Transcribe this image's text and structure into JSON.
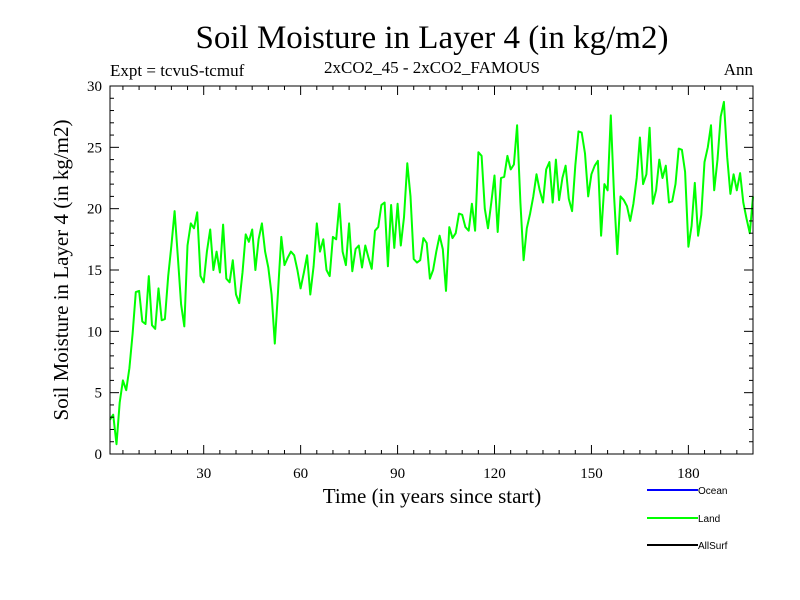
{
  "title": "Soil Moisture in Layer 4 (in kg/m2)",
  "subtitle_left": "Expt = tcvuS-tcmuf",
  "subtitle_center": "2xCO2_45 - 2xCO2_FAMOUS",
  "subtitle_right": "Ann",
  "colors": {
    "Ocean": "#0000ff",
    "Land": "#00ff00",
    "AllSurf": "#000000"
  },
  "chart_data": {
    "type": "line",
    "title": "Soil Moisture in Layer 4 (in kg/m2)",
    "xlabel": "Time (in years since start)",
    "ylabel": "Soil Moisture in Layer 4 (in kg/m2)",
    "xlim": [
      1,
      200
    ],
    "ylim": [
      0,
      30
    ],
    "xticks": [
      30,
      60,
      90,
      120,
      150,
      180
    ],
    "yticks": [
      0,
      5,
      10,
      15,
      20,
      25,
      30
    ],
    "grid": false,
    "legend_position": "bottom-right",
    "legend": [
      "Ocean",
      "Land",
      "AllSurf"
    ],
    "series": [
      {
        "name": "Ocean",
        "color": "#0000ff",
        "values": []
      },
      {
        "name": "Land",
        "color": "#00ff00",
        "x_start": 1,
        "x_step": 1,
        "values": [
          2.8,
          3.2,
          0.8,
          4.2,
          6.0,
          5.2,
          7.0,
          9.8,
          13.2,
          13.3,
          10.8,
          10.6,
          14.5,
          10.5,
          10.2,
          13.5,
          10.9,
          11.0,
          14.5,
          17.0,
          19.8,
          16.0,
          12.2,
          10.4,
          17.0,
          18.8,
          18.4,
          19.7,
          14.5,
          14.0,
          16.5,
          18.3,
          15.0,
          16.5,
          14.8,
          18.7,
          14.3,
          14.0,
          15.8,
          13.0,
          12.3,
          14.8,
          17.9,
          17.3,
          18.3,
          15.0,
          17.5,
          18.8,
          16.5,
          15.2,
          13.0,
          9.0,
          13.2,
          17.7,
          15.4,
          16.0,
          16.5,
          16.2,
          15.0,
          13.5,
          14.8,
          16.2,
          13.0,
          15.3,
          18.8,
          16.5,
          17.5,
          15.0,
          14.5,
          17.7,
          17.5,
          20.4,
          16.5,
          15.4,
          18.8,
          14.9,
          16.7,
          17.0,
          15.2,
          17.0,
          16.0,
          15.1,
          18.2,
          18.5,
          20.3,
          20.5,
          15.3,
          20.3,
          16.8,
          20.4,
          17.0,
          19.3,
          23.7,
          21.0,
          15.9,
          15.6,
          15.8,
          17.6,
          17.2,
          14.3,
          15.0,
          16.5,
          17.8,
          16.7,
          13.3,
          18.5,
          17.6,
          18.0,
          19.6,
          19.5,
          18.5,
          18.2,
          20.4,
          18.2,
          24.6,
          24.3,
          20.0,
          18.4,
          20.5,
          22.7,
          18.1,
          22.5,
          22.6,
          24.3,
          23.2,
          23.6,
          26.8,
          20.5,
          15.8,
          18.4,
          19.6,
          21.0,
          22.8,
          21.5,
          20.5,
          23.2,
          23.8,
          20.5,
          24.0,
          20.7,
          22.5,
          23.5,
          20.8,
          19.8,
          23.5,
          26.3,
          26.2,
          24.5,
          21.0,
          22.8,
          23.5,
          23.9,
          17.8,
          22.0,
          21.5,
          27.6,
          21.0,
          16.3,
          21.0,
          20.7,
          20.2,
          19.0,
          20.4,
          22.5,
          25.8,
          22.0,
          22.8,
          26.6,
          20.4,
          21.5,
          24.0,
          22.5,
          23.5,
          20.5,
          20.6,
          22.0,
          24.9,
          24.8,
          23.0,
          16.9,
          18.6,
          22.1,
          17.8,
          19.5,
          23.8,
          25.0,
          26.8,
          21.5,
          24.0,
          27.5,
          28.7,
          24.2,
          21.2,
          22.8,
          21.5,
          22.9,
          20.5,
          19.2,
          18.0,
          21.0
        ]
      },
      {
        "name": "AllSurf",
        "color": "#000000",
        "values": []
      }
    ]
  }
}
